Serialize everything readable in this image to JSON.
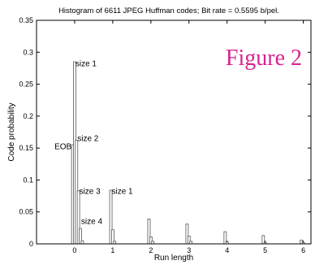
{
  "chart_data": {
    "type": "bar",
    "title": "Histogram of 6611 JPEG Huffman codes; Bit rate = 0.5595 b/pel.",
    "xlabel": "Run length",
    "ylabel": "Code probability",
    "xlim": [
      -1,
      6.2
    ],
    "ylim": [
      0,
      0.35
    ],
    "xticks": [
      0,
      1,
      2,
      3,
      4,
      5,
      6
    ],
    "yticks": [
      0,
      0.05,
      0.1,
      0.15,
      0.2,
      0.25,
      0.3,
      0.35
    ],
    "ytick_labels": [
      "0",
      "0.05",
      "0.1",
      "0.15",
      "0.2",
      "0.25",
      "0.3",
      "0.35"
    ],
    "bars": [
      {
        "x": -0.05,
        "value": 0.155
      },
      {
        "x": 0.0,
        "value": 0.285
      },
      {
        "x": 0.05,
        "value": 0.162
      },
      {
        "x": 0.1,
        "value": 0.083
      },
      {
        "x": 0.15,
        "value": 0.024
      },
      {
        "x": 0.2,
        "value": 0.005
      },
      {
        "x": 0.95,
        "value": 0.084
      },
      {
        "x": 1.0,
        "value": 0.022
      },
      {
        "x": 1.05,
        "value": 0.004
      },
      {
        "x": 1.95,
        "value": 0.039
      },
      {
        "x": 2.0,
        "value": 0.011
      },
      {
        "x": 2.05,
        "value": 0.004
      },
      {
        "x": 2.95,
        "value": 0.031
      },
      {
        "x": 3.0,
        "value": 0.012
      },
      {
        "x": 3.05,
        "value": 0.004
      },
      {
        "x": 3.95,
        "value": 0.019
      },
      {
        "x": 4.0,
        "value": 0.003
      },
      {
        "x": 4.95,
        "value": 0.013
      },
      {
        "x": 5.0,
        "value": 0.002
      },
      {
        "x": 5.95,
        "value": 0.006
      },
      {
        "x": 6.0,
        "value": 0.002
      }
    ],
    "annotations": [
      {
        "text": "size 1",
        "x": 0.02,
        "y": 0.282,
        "anchor": "start"
      },
      {
        "text": "size 2",
        "x": 0.07,
        "y": 0.165,
        "anchor": "start"
      },
      {
        "text": "EOB",
        "x": -0.08,
        "y": 0.152,
        "anchor": "end"
      },
      {
        "text": "size 3",
        "x": 0.12,
        "y": 0.082,
        "anchor": "start"
      },
      {
        "text": "size 1",
        "x": 0.97,
        "y": 0.082,
        "anchor": "start"
      },
      {
        "text": "size 4",
        "x": 0.17,
        "y": 0.035,
        "anchor": "start"
      }
    ],
    "figure_label": "Figure 2",
    "label_color": "#d6248f",
    "bar_color": "#ffffff",
    "edge_color": "#555555",
    "grid": false,
    "legend": "none"
  }
}
